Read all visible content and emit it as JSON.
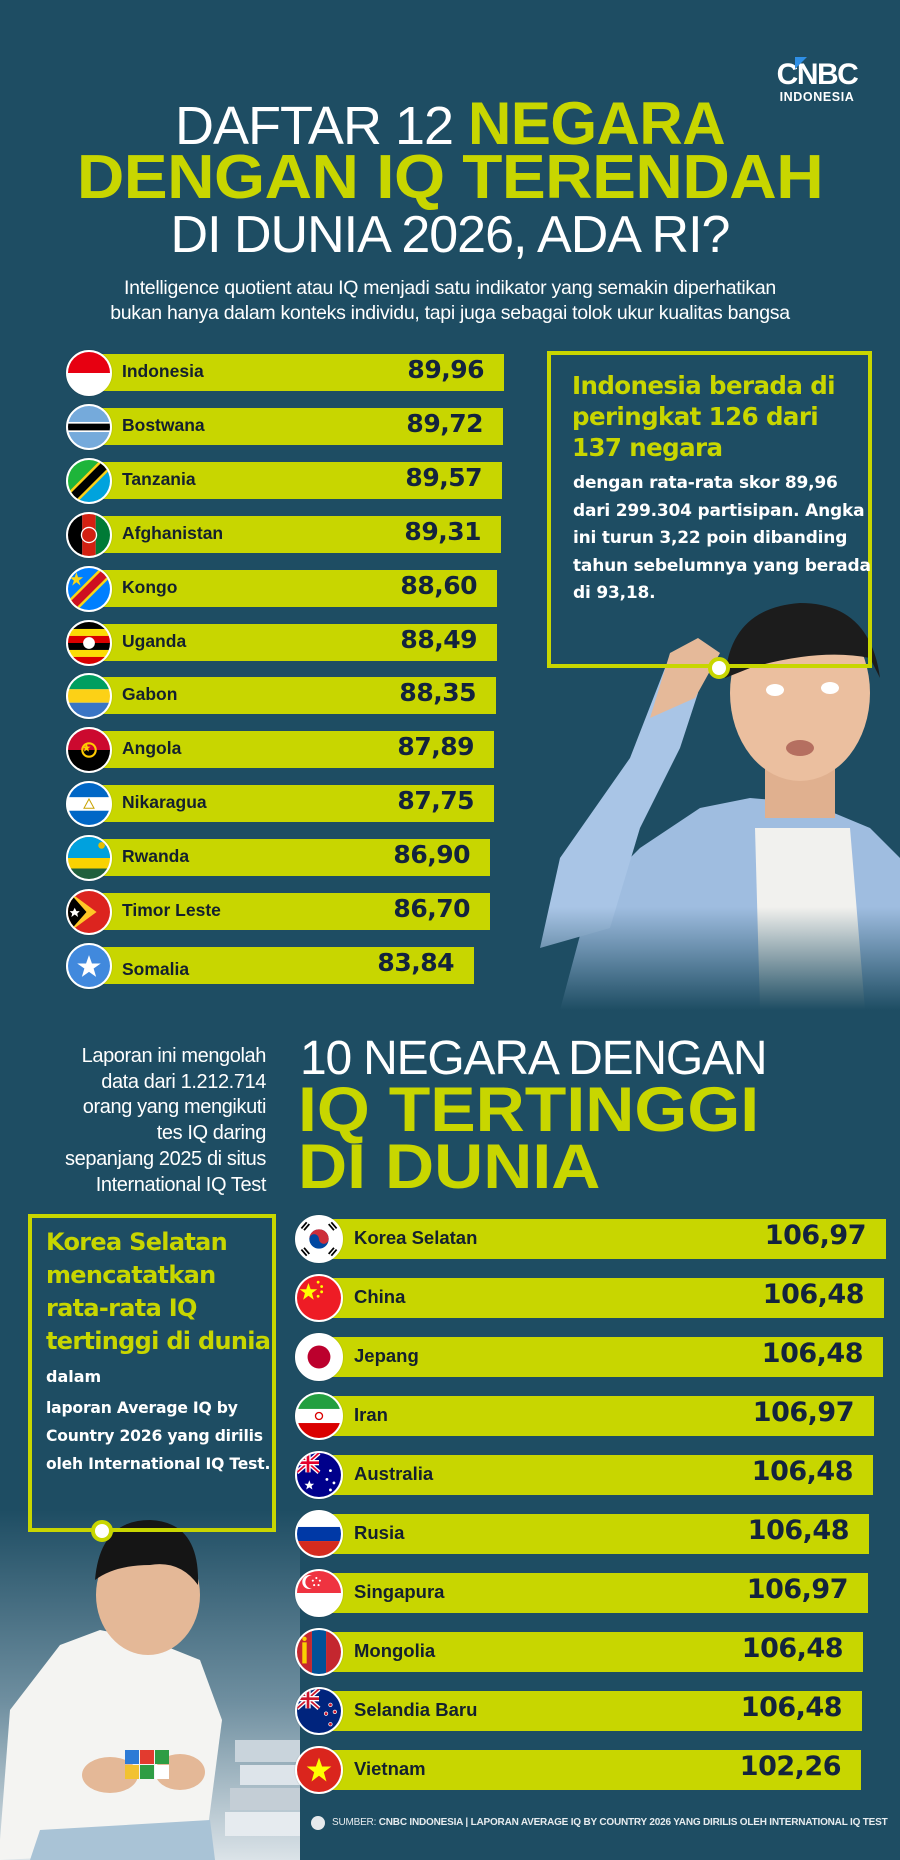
{
  "brand": {
    "logo_main": "CNBC",
    "logo_sub": "INDONESIA"
  },
  "header": {
    "title_line1_white": "DAFTAR 12",
    "title_line1_accent": "NEGARA",
    "title_line2_accent": "DENGAN IQ TERENDAH",
    "title_line3_white": "DI DUNIA 2026, ADA RI?",
    "subtitle_line1": "Intelligence quotient atau IQ menjadi satu indikator yang semakin diperhatikan",
    "subtitle_line2": "bukan hanya dalam konteks individu, tapi juga sebagai tolok ukur kualitas bangsa"
  },
  "lowest": {
    "items": [
      {
        "country": "Indonesia",
        "value": "89,96",
        "flag": "flag-indonesia"
      },
      {
        "country": "Bostwana",
        "value": "89,72",
        "flag": "flag-botswana"
      },
      {
        "country": "Tanzania",
        "value": "89,57",
        "flag": "flag-tanzania"
      },
      {
        "country": "Afghanistan",
        "value": "89,31",
        "flag": "flag-afghanistan"
      },
      {
        "country": "Kongo",
        "value": "88,60",
        "flag": "flag-congo"
      },
      {
        "country": "Uganda",
        "value": "88,49",
        "flag": "flag-uganda"
      },
      {
        "country": "Gabon",
        "value": "88,35",
        "flag": "flag-gabon"
      },
      {
        "country": "Angola",
        "value": "87,89",
        "flag": "flag-angola"
      },
      {
        "country": "Nikaragua",
        "value": "87,75",
        "flag": "flag-nicaragua"
      },
      {
        "country": "Rwanda",
        "value": "86,90",
        "flag": "flag-rwanda"
      },
      {
        "country": "Timor Leste",
        "value": "86,70",
        "flag": "flag-timor-leste"
      },
      {
        "country": "Somalia",
        "value": "83,84",
        "flag": "flag-somalia"
      }
    ]
  },
  "indonesia_box": {
    "headline": "Indonesia berada di peringkat 126 dari 137 negara",
    "body": "dengan rata-rata skor 89,96 dari 299.304 partisipan. Angka ini turun 3,22 poin dibanding tahun sebelumnya yang berada di 93,18."
  },
  "report_note": {
    "lines": [
      "Laporan ini mengolah",
      "data dari 1.212.714",
      "orang yang mengikuti",
      "tes IQ daring",
      "sepanjang 2025 di situs",
      "International IQ Test"
    ]
  },
  "highest_header": {
    "line1_white": "10 NEGARA DENGAN",
    "line2_accent": "IQ TERTINGGI",
    "line3_accent": "DI DUNIA"
  },
  "korea_box": {
    "headline": "Korea Selatan mencatatkan rata-rata IQ tertinggi di dunia",
    "headline_tail": "dalam",
    "body": "laporan Average IQ by Country 2026 yang dirilis oleh International IQ Test."
  },
  "highest": {
    "items": [
      {
        "country": "Korea Selatan",
        "value": "106,97",
        "flag": "flag-south-korea"
      },
      {
        "country": "China",
        "value": "106,48",
        "flag": "flag-china"
      },
      {
        "country": "Jepang",
        "value": "106,48",
        "flag": "flag-japan"
      },
      {
        "country": "Iran",
        "value": "106,97",
        "flag": "flag-iran"
      },
      {
        "country": "Australia",
        "value": "106,48",
        "flag": "flag-australia"
      },
      {
        "country": "Rusia",
        "value": "106,48",
        "flag": "flag-russia"
      },
      {
        "country": "Singapura",
        "value": "106,97",
        "flag": "flag-singapore"
      },
      {
        "country": "Mongolia",
        "value": "106,48",
        "flag": "flag-mongolia"
      },
      {
        "country": "Selandia Baru",
        "value": "106,48",
        "flag": "flag-new-zealand"
      },
      {
        "country": "Vietnam",
        "value": "102,26",
        "flag": "flag-vietnam"
      }
    ]
  },
  "footer": {
    "source_label": "SUMBER:",
    "source_text": "CNBC INDONESIA | LAPORAN AVERAGE IQ BY COUNTRY 2026 YANG DIRILIS OLEH INTERNATIONAL IQ TEST"
  },
  "colors": {
    "background": "#1e4d63",
    "accent_lime": "#c8d600",
    "value_text": "#13233d",
    "label_text": "#14202e",
    "white": "#ffffff"
  },
  "chart_data": [
    {
      "type": "bar",
      "orientation": "horizontal",
      "title": "DAFTAR 12 NEGARA DENGAN IQ TERENDAH DI DUNIA 2026, ADA RI?",
      "subtitle": "Intelligence quotient atau IQ menjadi satu indikator yang semakin diperhatikan bukan hanya dalam konteks individu, tapi juga sebagai tolok ukur kualitas bangsa",
      "categories": [
        "Indonesia",
        "Bostwana",
        "Tanzania",
        "Afghanistan",
        "Kongo",
        "Uganda",
        "Gabon",
        "Angola",
        "Nikaragua",
        "Rwanda",
        "Timor Leste",
        "Somalia"
      ],
      "values": [
        89.96,
        89.72,
        89.57,
        89.31,
        88.6,
        88.49,
        88.35,
        87.89,
        87.75,
        86.9,
        86.7,
        83.84
      ],
      "value_labels": [
        "89,96",
        "89,72",
        "89,57",
        "89,31",
        "88,60",
        "88,49",
        "88,35",
        "87,89",
        "87,75",
        "86,90",
        "86,70",
        "83,84"
      ],
      "xlabel": "",
      "ylabel": "",
      "grid": false,
      "legend": null
    },
    {
      "type": "bar",
      "orientation": "horizontal",
      "title": "10 NEGARA DENGAN IQ TERTINGGI DI DUNIA",
      "categories": [
        "Korea Selatan",
        "China",
        "Jepang",
        "Iran",
        "Australia",
        "Rusia",
        "Singapura",
        "Mongolia",
        "Selandia Baru",
        "Vietnam"
      ],
      "values": [
        106.97,
        106.48,
        106.48,
        106.97,
        106.48,
        106.48,
        106.97,
        106.48,
        106.48,
        102.26
      ],
      "value_labels": [
        "106,97",
        "106,48",
        "106,48",
        "106,97",
        "106,48",
        "106,48",
        "106,97",
        "106,48",
        "106,48",
        "102,26"
      ],
      "xlabel": "",
      "ylabel": "",
      "grid": false,
      "legend": null
    }
  ]
}
